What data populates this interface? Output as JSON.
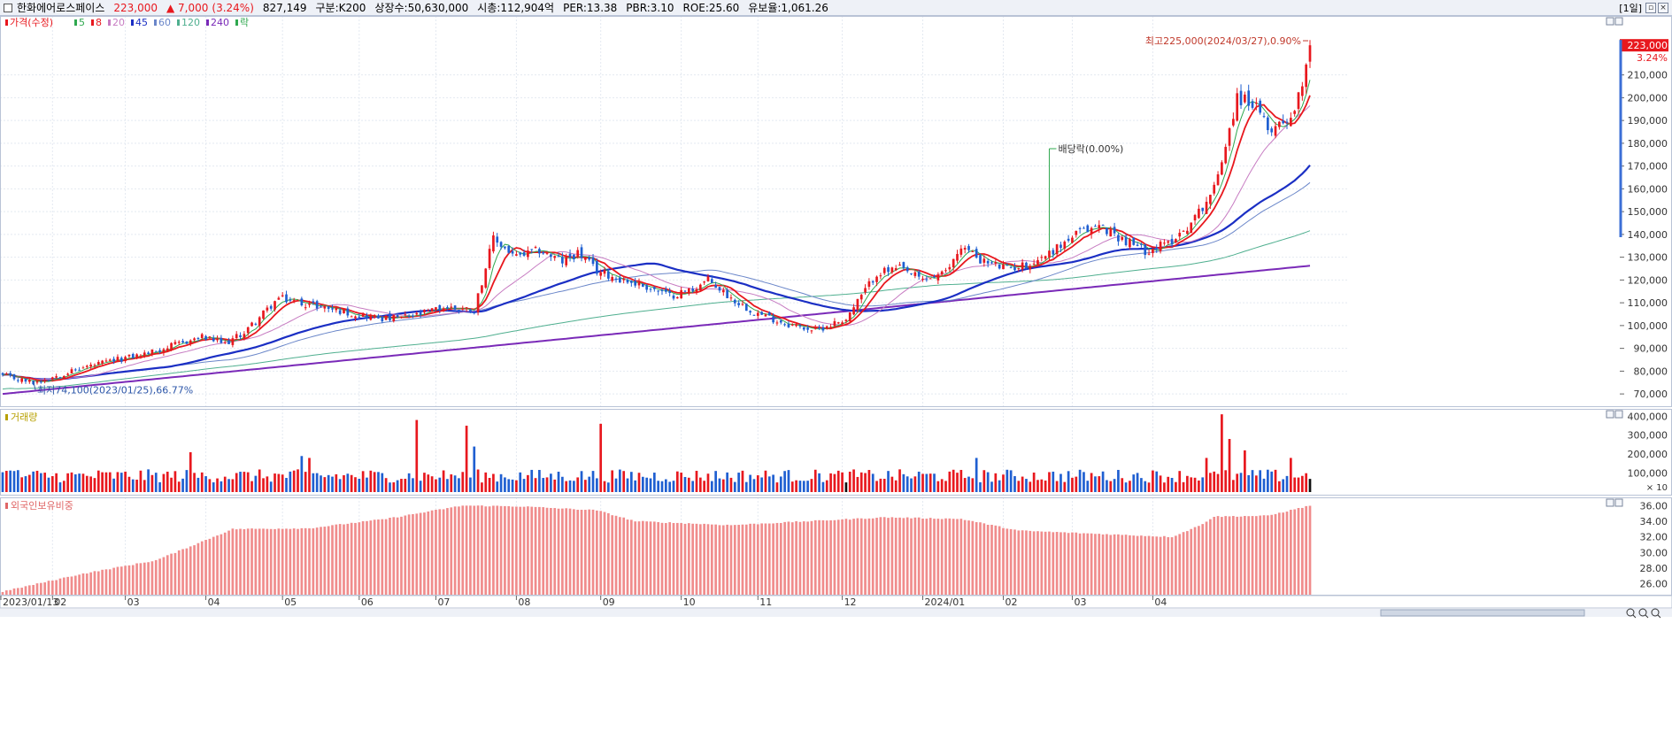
{
  "header": {
    "stock_name": "한화에어로스페이스",
    "price": "223,000",
    "change": "▲ 7,000",
    "change_pct": "(3.24%)",
    "volume": "827,149",
    "category": "구분:K200",
    "shares": "상장수:50,630,000",
    "market_cap": "시총:112,904억",
    "per": "PER:13.38",
    "pbr": "PBR:3.10",
    "roe": "ROE:25.60",
    "float_ratio": "유보율:1,061.26",
    "period": "[1일]",
    "colors": {
      "up": "#e8181e",
      "down": "#1f5fd1"
    }
  },
  "price_legend": [
    {
      "label": "가격(수정)",
      "color": "#e8181e"
    },
    {
      "label": "5",
      "color": "#2fa84f"
    },
    {
      "label": "8",
      "color": "#e8181e"
    },
    {
      "label": "20",
      "color": "#c77cc2"
    },
    {
      "label": "45",
      "color": "#1b2fc4"
    },
    {
      "label": "60",
      "color": "#6a86c9"
    },
    {
      "label": "120",
      "color": "#4faf8f"
    },
    {
      "label": "240",
      "color": "#7a2ab8"
    },
    {
      "label": "락",
      "color": "#2fa84f"
    }
  ],
  "volume_title": "거래량",
  "foreign_title": "외국인보유비중",
  "chart_data": [
    {
      "type": "line",
      "x_range": [
        "2023/01/13",
        "2024/03/28"
      ],
      "ylim": [
        65000,
        232000
      ],
      "y_ticks": [
        "70,000",
        "80,000",
        "90,000",
        "100,000",
        "110,000",
        "120,000",
        "130,000",
        "140,000",
        "150,000",
        "160,000",
        "170,000",
        "180,000",
        "190,000",
        "200,000",
        "210,000"
      ],
      "current_price_label": "223,000",
      "current_pct_label": "3.24%",
      "annotations": {
        "high": {
          "label": "최고225,000(2024/03/27),0.90%",
          "value": 225000
        },
        "low": {
          "label": "최저74,100(2023/01/25),66.77%",
          "value": 74100
        },
        "dividend": {
          "label": "배당락(0.00%)"
        }
      },
      "close_keypoints": [
        [
          0,
          78000
        ],
        [
          8,
          75000
        ],
        [
          22,
          82000
        ],
        [
          38,
          88000
        ],
        [
          52,
          95000
        ],
        [
          58,
          92000
        ],
        [
          63,
          97000
        ],
        [
          72,
          112000
        ],
        [
          84,
          108000
        ],
        [
          92,
          105000
        ],
        [
          100,
          103000
        ],
        [
          107,
          104000
        ],
        [
          115,
          108000
        ],
        [
          123,
          107000
        ],
        [
          128,
          138000
        ],
        [
          134,
          130000
        ],
        [
          140,
          133000
        ],
        [
          146,
          128000
        ],
        [
          150,
          132000
        ],
        [
          155,
          124000
        ],
        [
          160,
          121000
        ],
        [
          168,
          117000
        ],
        [
          174,
          113000
        ],
        [
          180,
          116000
        ],
        [
          184,
          120000
        ],
        [
          190,
          112000
        ],
        [
          196,
          106000
        ],
        [
          204,
          101000
        ],
        [
          212,
          98000
        ],
        [
          220,
          103000
        ],
        [
          228,
          123000
        ],
        [
          234,
          125000
        ],
        [
          240,
          120000
        ],
        [
          246,
          123000
        ],
        [
          250,
          135000
        ],
        [
          256,
          128000
        ],
        [
          262,
          125000
        ],
        [
          268,
          127000
        ],
        [
          274,
          133000
        ],
        [
          280,
          140000
        ],
        [
          286,
          144000
        ],
        [
          292,
          138000
        ],
        [
          298,
          133000
        ],
        [
          304,
          136000
        ],
        [
          310,
          145000
        ],
        [
          316,
          160000
        ],
        [
          322,
          200000
        ],
        [
          326,
          198000
        ],
        [
          330,
          186000
        ],
        [
          336,
          192000
        ],
        [
          338,
          200000
        ],
        [
          341,
          223000
        ]
      ],
      "moving_average_periods": [
        5,
        8,
        20,
        45,
        60,
        120,
        240
      ]
    },
    {
      "type": "bar",
      "title": "거래량",
      "y_ticks": [
        "100,000",
        "200,000",
        "300,000",
        "400,000"
      ],
      "unit_label": "× 10",
      "ylim": [
        0,
        420000
      ],
      "spikes": [
        [
          49,
          210000
        ],
        [
          78,
          190000
        ],
        [
          80,
          180000
        ],
        [
          108,
          380000
        ],
        [
          121,
          350000
        ],
        [
          123,
          240000
        ],
        [
          156,
          360000
        ],
        [
          254,
          180000
        ],
        [
          314,
          180000
        ],
        [
          318,
          410000
        ],
        [
          320,
          280000
        ],
        [
          324,
          220000
        ],
        [
          336,
          180000
        ]
      ]
    },
    {
      "type": "bar",
      "title": "외국인보유비중",
      "y_ticks": [
        "26.00",
        "28.00",
        "30.00",
        "32.00",
        "34.00",
        "36.00"
      ],
      "ylim": [
        24.6,
        36.6
      ],
      "keypoints": [
        [
          0,
          25.0
        ],
        [
          20,
          27.2
        ],
        [
          40,
          29.0
        ],
        [
          60,
          33.0
        ],
        [
          80,
          33.1
        ],
        [
          100,
          34.3
        ],
        [
          120,
          36.0
        ],
        [
          135,
          35.9
        ],
        [
          155,
          35.4
        ],
        [
          165,
          34.0
        ],
        [
          190,
          33.5
        ],
        [
          210,
          34.0
        ],
        [
          230,
          34.5
        ],
        [
          250,
          34.3
        ],
        [
          265,
          32.8
        ],
        [
          290,
          32.3
        ],
        [
          305,
          32.0
        ],
        [
          312,
          33.4
        ],
        [
          316,
          34.6
        ],
        [
          330,
          34.7
        ],
        [
          341,
          36.0
        ]
      ]
    }
  ],
  "x_axis": {
    "labels": [
      "2023/01/13",
      "02",
      "03",
      "04",
      "05",
      "06",
      "07",
      "08",
      "09",
      "10",
      "11",
      "12",
      "2024/01",
      "02",
      "03",
      "04"
    ]
  }
}
